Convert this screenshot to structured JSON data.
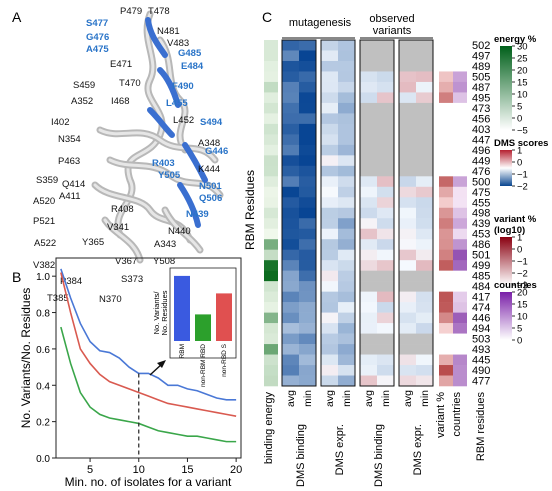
{
  "panel_a": {
    "letter": "A",
    "labels_blue": [
      "S477",
      "G476",
      "A475",
      "G485",
      "E484",
      "F490",
      "L455",
      "S494",
      "G446",
      "R403",
      "Y505",
      "N501",
      "Q506",
      "N439"
    ],
    "labels_black": [
      "P479",
      "T478",
      "N481",
      "V483",
      "E471",
      "S459",
      "T470",
      "A352",
      "I468",
      "L452",
      "I402",
      "N354",
      "A348",
      "K444",
      "P463",
      "Q414",
      "S359",
      "A411",
      "R408",
      "A520",
      "V341",
      "N440",
      "P521",
      "A522",
      "Y365",
      "A343",
      "Y508",
      "V382",
      "P384",
      "V367",
      "S373",
      "T385",
      "N370"
    ]
  },
  "panel_b": {
    "letter": "B",
    "xlabel": "Min. no. of isolates for a variant",
    "ylabel": "No. Variants/No. Residues",
    "xticks": [
      "5",
      "10",
      "15",
      "20"
    ],
    "yticks": [
      "0.0",
      "0.2",
      "0.4",
      "0.6",
      "0.8",
      "1.0"
    ],
    "inset_ylabel_line1": "No. Variants/",
    "inset_ylabel_line2": "No. Residues",
    "inset_categories": [
      "RBM",
      "non-RBM RBD",
      "non-RBD S"
    ]
  },
  "panel_c": {
    "letter": "C",
    "group_mutagenesis": "mutagenesis",
    "group_observed_line1": "observed",
    "group_observed_line2": "variants",
    "sub_avg": "avg",
    "sub_min": "min",
    "bottom_labels": [
      "binding energy",
      "DMS binding",
      "DMS expr.",
      "DMS binding",
      "DMS expr.",
      "variant %",
      "countries",
      "RBM residues"
    ],
    "ylabel": "RBM Residues",
    "residues": [
      "502",
      "497",
      "489",
      "505",
      "487",
      "495",
      "473",
      "456",
      "403",
      "447",
      "496",
      "449",
      "476",
      "500",
      "475",
      "455",
      "498",
      "439",
      "453",
      "486",
      "501",
      "499",
      "485",
      "484",
      "417",
      "474",
      "446",
      "494",
      "503",
      "493",
      "445",
      "490",
      "477"
    ],
    "legend_energy_title": "energy %",
    "legend_energy_ticks": [
      "30",
      "25",
      "20",
      "15",
      "10",
      "5",
      "0",
      "−5"
    ],
    "legend_dms_title": "DMS scores",
    "legend_dms_ticks": [
      "1",
      "0",
      "−1",
      "−2"
    ],
    "legend_var_title_line1": "variant %",
    "legend_var_title_line2": "(log10)",
    "legend_var_ticks": [
      "1",
      "0",
      "−1",
      "−2",
      "−3"
    ],
    "legend_countries_title": "countries",
    "legend_countries_ticks": [
      "20",
      "15",
      "10",
      "5",
      "0"
    ]
  },
  "chart_data": {
    "type": "line",
    "x": [
      2,
      3,
      4,
      5,
      6,
      7,
      8,
      9,
      10,
      11,
      12,
      13,
      14,
      15,
      16,
      17,
      18,
      19,
      20
    ],
    "series": [
      {
        "color": "#4a78d6",
        "values": [
          1.04,
          0.88,
          0.74,
          0.64,
          0.59,
          0.58,
          0.55,
          0.5,
          0.465,
          0.465,
          0.44,
          0.4,
          0.4,
          0.38,
          0.37,
          0.35,
          0.33,
          0.32,
          0.32
        ]
      },
      {
        "color": "#d95a50",
        "values": [
          1.02,
          0.8,
          0.6,
          0.52,
          0.46,
          0.42,
          0.4,
          0.38,
          0.36,
          0.34,
          0.32,
          0.3,
          0.29,
          0.28,
          0.27,
          0.26,
          0.25,
          0.24,
          0.23
        ]
      },
      {
        "color": "#3aa64a",
        "values": [
          0.72,
          0.52,
          0.36,
          0.28,
          0.24,
          0.22,
          0.21,
          0.2,
          0.19,
          0.17,
          0.15,
          0.14,
          0.13,
          0.12,
          0.12,
          0.11,
          0.1,
          0.09,
          0.09
        ]
      }
    ],
    "xlim": [
      1.5,
      20.5
    ],
    "ylim": [
      0,
      1.1
    ],
    "inset": {
      "type": "bar",
      "categories": [
        "RBM",
        "non-RBM RBD",
        "non-RBD S"
      ],
      "values": [
        0.465,
        0.19,
        0.34
      ],
      "colors": [
        "#3a5ae0",
        "#2ca02c",
        "#e05050"
      ]
    }
  }
}
